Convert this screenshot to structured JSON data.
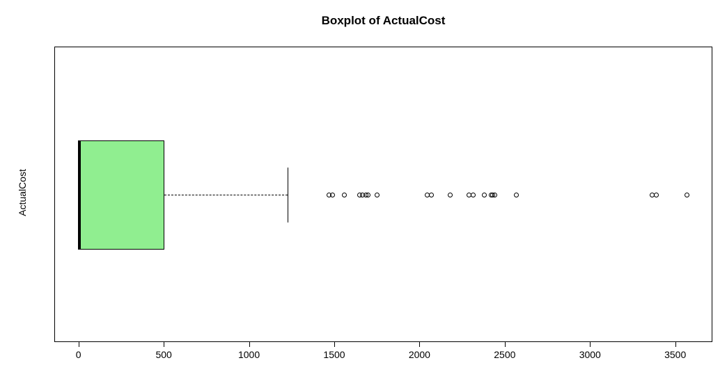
{
  "chart_data": {
    "type": "boxplot",
    "orientation": "horizontal",
    "title": "Boxplot of ActualCost",
    "ylabel": "ActualCost",
    "xlabel": "",
    "x_axis": {
      "min": 0,
      "max": 3500,
      "ticks": [
        0,
        500,
        1000,
        1500,
        2000,
        2500,
        3000,
        3500
      ]
    },
    "box": {
      "min": 0,
      "q1": 0,
      "median": 5,
      "q3": 505,
      "whisker_high": 1225
    },
    "outliers": [
      1470,
      1490,
      1560,
      1650,
      1665,
      1685,
      1700,
      1750,
      2045,
      2070,
      2180,
      2290,
      2315,
      2380,
      2420,
      2430,
      2440,
      2570,
      3365,
      3390,
      3570
    ],
    "box_fill_color": "#90EE90",
    "stroke_color": "#000000",
    "background_color": "#FFFFFF",
    "grid": false,
    "legend": null
  }
}
